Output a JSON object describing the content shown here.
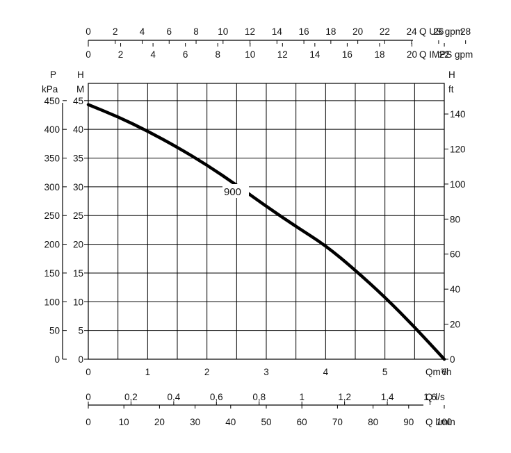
{
  "chart_data": {
    "type": "line",
    "title": "",
    "xlabel": "Qm³/h",
    "ylabel": "H M",
    "xlim": [
      0,
      6
    ],
    "ylim": [
      0,
      48
    ],
    "grid": true,
    "series": [
      {
        "name": "900",
        "x": [
          0,
          0.5,
          1,
          1.5,
          2,
          2.5,
          3,
          3.5,
          4,
          4.5,
          5,
          5.5,
          6
        ],
        "y": [
          44.3,
          42.2,
          39.7,
          36.9,
          33.8,
          30.3,
          26.6,
          23.1,
          19.8,
          15.5,
          10.8,
          5.6,
          0
        ]
      }
    ],
    "curve_label": "900",
    "axes": {
      "bottom_main": {
        "label": "Qm³/h",
        "ticks": [
          "0",
          "1",
          "2",
          "3",
          "4",
          "5",
          "6"
        ]
      },
      "left_H": {
        "unit_top": "H",
        "unit_bottom": "M",
        "ticks": [
          "0",
          "5",
          "10",
          "15",
          "20",
          "25",
          "30",
          "35",
          "40",
          "45"
        ]
      },
      "left_P": {
        "unit_top": "P",
        "unit_bottom": "kPa",
        "ticks": [
          "0",
          "50",
          "100",
          "150",
          "200",
          "250",
          "300",
          "350",
          "400",
          "450"
        ]
      },
      "right_ft": {
        "unit_top": "H",
        "unit_bottom": "ft",
        "ticks": [
          "0",
          "20",
          "40",
          "60",
          "80",
          "100",
          "120",
          "140"
        ]
      },
      "top_us": {
        "label": "Q US gpm",
        "ticks": [
          "0",
          "2",
          "4",
          "6",
          "8",
          "10",
          "12",
          "14",
          "16",
          "18",
          "20",
          "22",
          "24",
          "26",
          "28"
        ]
      },
      "top_imp": {
        "label": "Q IMPS gpm",
        "ticks": [
          "0",
          "2",
          "4",
          "6",
          "8",
          "10",
          "12",
          "14",
          "16",
          "18",
          "20",
          "22"
        ]
      },
      "bottom_ls": {
        "label": "Q l/s",
        "ticks": [
          "0",
          "0,2",
          "0,4",
          "0,6",
          "0,8",
          "1",
          "1,2",
          "1,4",
          "1,6"
        ]
      },
      "bottom_lmin": {
        "label": "Q l/min",
        "ticks": [
          "0",
          "10",
          "20",
          "30",
          "40",
          "50",
          "60",
          "70",
          "80",
          "90",
          "100"
        ]
      }
    }
  }
}
